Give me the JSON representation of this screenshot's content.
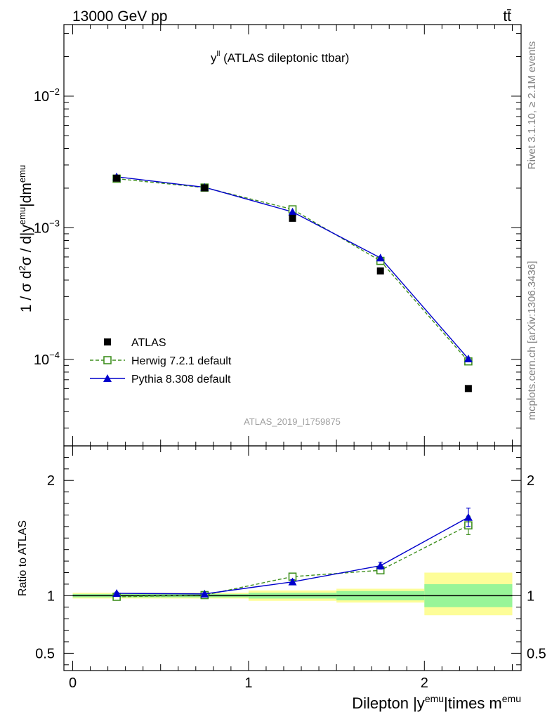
{
  "header": {
    "energy_label": "13000 GeV pp",
    "process_label": "tt̄"
  },
  "side_labels": {
    "rivet": "Rivet 3.1.10, ≥ 2.1M events",
    "mcplots": "mcplots.cern.ch [arXiv:1306.3436]"
  },
  "chart_data": [
    {
      "type": "scatter",
      "title_main": "y",
      "title_sup": "ll",
      "title_rest": " (ATLAS dileptonic ttbar)",
      "watermark": "ATLAS_2019_I1759875",
      "ylabel": "1 / σ  d²σ / d|y^emu|dm^emu",
      "yscale": "log",
      "xlim": [
        -0.05,
        2.55
      ],
      "ylim": [
        2.2e-05,
        0.035
      ],
      "yticks": [
        {
          "value": 0.0001,
          "mantissa": "10",
          "exp": "−4"
        },
        {
          "value": 0.001,
          "mantissa": "10",
          "exp": "−3"
        },
        {
          "value": 0.01,
          "mantissa": "10",
          "exp": "−2"
        }
      ],
      "legend_position": "bottom-left",
      "x": [
        0.25,
        0.75,
        1.25,
        1.75,
        2.25
      ],
      "series": [
        {
          "name": "ATLAS",
          "marker": "filled-square",
          "color": "#000000",
          "values": [
            0.00238,
            0.00201,
            0.00118,
            0.00047,
            6e-05
          ]
        },
        {
          "name": "Herwig 7.2.1 default",
          "marker": "open-square",
          "line": "dashed",
          "color": "#3f8f1f",
          "values": [
            0.00236,
            0.00202,
            0.00138,
            0.00056,
            9.65e-05
          ]
        },
        {
          "name": "Pythia 8.308 default",
          "marker": "filled-triangle",
          "line": "solid",
          "color": "#0000cc",
          "values": [
            0.00244,
            0.00203,
            0.00132,
            0.00059,
            0.000101
          ]
        }
      ]
    },
    {
      "type": "line",
      "ylabel": "Ratio to ATLAS",
      "xlabel_main": "Dilepton |y",
      "xlabel_sup1": "emu",
      "xlabel_mid": "|times m",
      "xlabel_sup2": "emu",
      "xlim": [
        -0.05,
        2.55
      ],
      "ylim": [
        0.35,
        2.3
      ],
      "xticks": [
        0,
        1,
        2
      ],
      "xtick_labels": [
        "0",
        "1",
        "2"
      ],
      "yticks_left": [
        0.5,
        1,
        2
      ],
      "yticks_left_labels": [
        "0.5",
        "1",
        "2"
      ],
      "yticks_right": [
        0.5,
        1,
        2
      ],
      "yticks_right_labels": [
        "0.5",
        "1",
        "2"
      ],
      "reference_line": 1,
      "bands": [
        {
          "x": [
            0.0,
            0.5
          ],
          "inner": [
            0.985,
            1.015
          ],
          "outer": [
            0.975,
            1.025
          ]
        },
        {
          "x": [
            0.5,
            1.0
          ],
          "inner": [
            0.985,
            1.015
          ],
          "outer": [
            0.975,
            1.025
          ]
        },
        {
          "x": [
            1.0,
            1.5
          ],
          "inner": [
            0.975,
            1.025
          ],
          "outer": [
            0.955,
            1.045
          ]
        },
        {
          "x": [
            1.5,
            2.0
          ],
          "inner": [
            0.96,
            1.04
          ],
          "outer": [
            0.94,
            1.06
          ]
        },
        {
          "x": [
            2.0,
            2.5
          ],
          "inner": [
            0.9,
            1.1
          ],
          "outer": [
            0.83,
            1.2
          ]
        }
      ],
      "band_colors": {
        "inner": "#98f598",
        "outer": "#fdfd98"
      },
      "x": [
        0.25,
        0.75,
        1.25,
        1.75,
        2.25
      ],
      "series": [
        {
          "name": "Herwig 7.2.1 default",
          "marker": "open-square",
          "line": "dashed",
          "color": "#3f8f1f",
          "values": [
            0.99,
            1.005,
            1.165,
            1.22,
            1.61
          ],
          "errors": [
            0.01,
            0.01,
            0.02,
            0.03,
            0.08
          ]
        },
        {
          "name": "Pythia 8.308 default",
          "marker": "filled-triangle",
          "line": "solid",
          "color": "#0000cc",
          "values": [
            1.02,
            1.015,
            1.12,
            1.26,
            1.68
          ],
          "errors": [
            0.01,
            0.01,
            0.02,
            0.03,
            0.08
          ]
        }
      ]
    }
  ]
}
